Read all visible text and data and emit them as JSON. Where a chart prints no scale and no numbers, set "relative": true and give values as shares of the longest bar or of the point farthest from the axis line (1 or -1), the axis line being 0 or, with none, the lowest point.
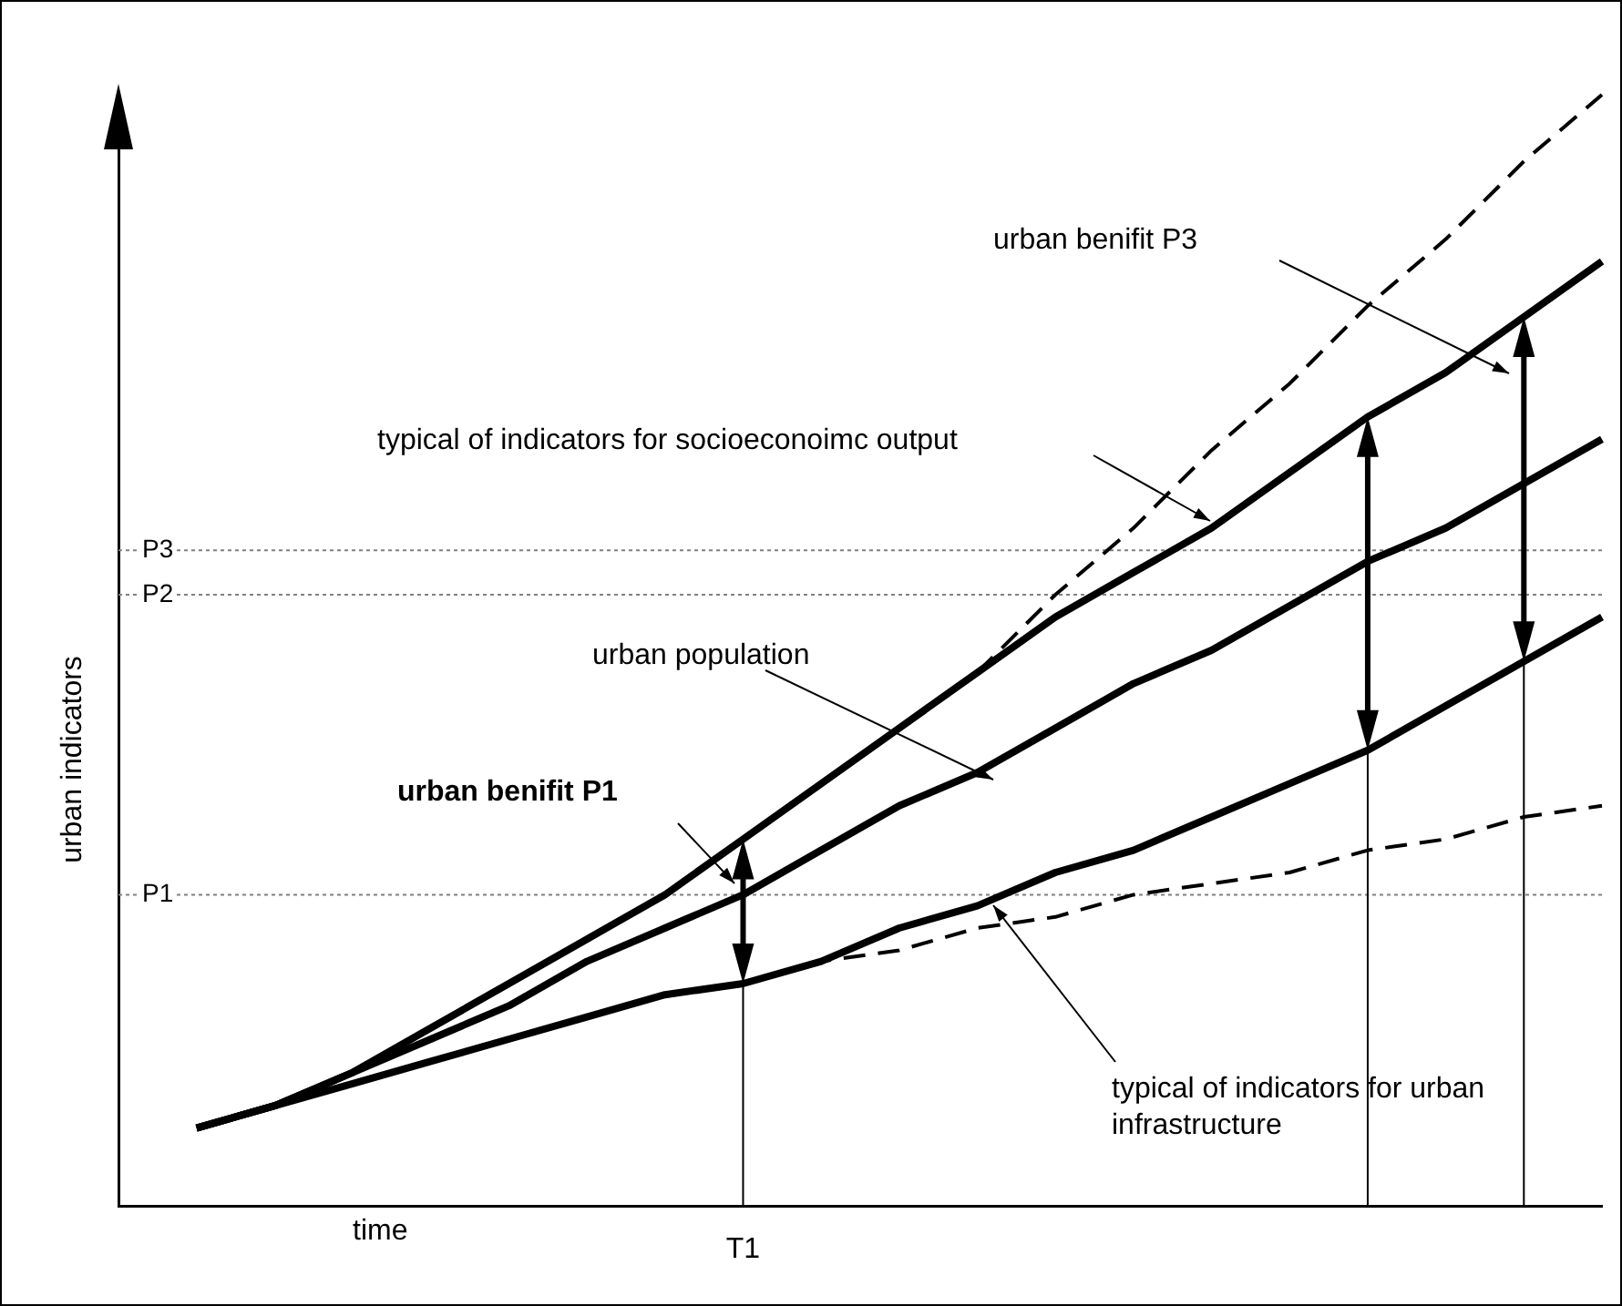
{
  "chart_data": {
    "type": "line",
    "relative": true,
    "xlabel": "time",
    "ylabel": "urban indicators",
    "categories": [
      null,
      null,
      null,
      null,
      null,
      null,
      null,
      null,
      null,
      null,
      null,
      null,
      null,
      null,
      null,
      null,
      null,
      null,
      null,
      null
    ],
    "series": [
      {
        "color": "#000000",
        "line_style": "solid",
        "values": [
          null,
          0.07,
          0.09,
          0.12,
          0.16,
          0.2,
          0.24,
          0.28,
          0.33,
          0.38,
          0.43,
          0.48,
          0.53,
          0.57,
          0.61,
          0.66,
          0.71,
          0.75,
          0.8,
          0.85
        ]
      },
      {
        "color": "#000000",
        "line_style": "solid",
        "values": [
          null,
          0.07,
          0.09,
          0.12,
          0.15,
          0.18,
          0.22,
          0.25,
          0.28,
          0.32,
          0.36,
          0.39,
          0.43,
          0.47,
          0.5,
          0.54,
          0.58,
          0.61,
          0.65,
          0.69
        ]
      },
      {
        "color": "#000000",
        "line_style": "solid",
        "values": [
          null,
          0.07,
          0.09,
          0.11,
          0.13,
          0.15,
          0.17,
          0.19,
          0.2,
          0.22,
          0.25,
          0.27,
          0.3,
          0.32,
          0.35,
          0.38,
          0.41,
          0.45,
          0.49,
          0.53
        ]
      },
      {
        "color": "#000000",
        "line_style": "dashed",
        "values": [
          null,
          null,
          null,
          null,
          null,
          null,
          null,
          null,
          0.2,
          0.22,
          0.23,
          0.25,
          0.26,
          0.28,
          0.29,
          0.3,
          0.32,
          0.33,
          0.35,
          0.36
        ]
      },
      {
        "color": "#000000",
        "line_style": "dashed",
        "values": [
          null,
          null,
          null,
          null,
          null,
          null,
          null,
          null,
          null,
          null,
          null,
          0.48,
          0.55,
          0.61,
          0.68,
          0.74,
          0.81,
          0.87,
          0.94,
          1
        ]
      }
    ],
    "ref_lines": [
      {
        "axis": "y",
        "value": 0.28,
        "label": "P1",
        "line_style": "dotted",
        "color": "#808080"
      },
      {
        "axis": "y",
        "value": 0.55,
        "label": "P2",
        "line_style": "dotted",
        "color": "#808080"
      },
      {
        "axis": "y",
        "value": 0.59,
        "label": "P3",
        "line_style": "dotted",
        "color": "#808080"
      }
    ],
    "annotations": [
      "urban benifit P3",
      "typical of indicators for socioeconoimc output",
      "urban population",
      "urban benifit P1",
      "typical of indicators for urban infrastructure",
      "T1"
    ],
    "tick_labels": "x",
    "legend": false,
    "grid": false
  }
}
